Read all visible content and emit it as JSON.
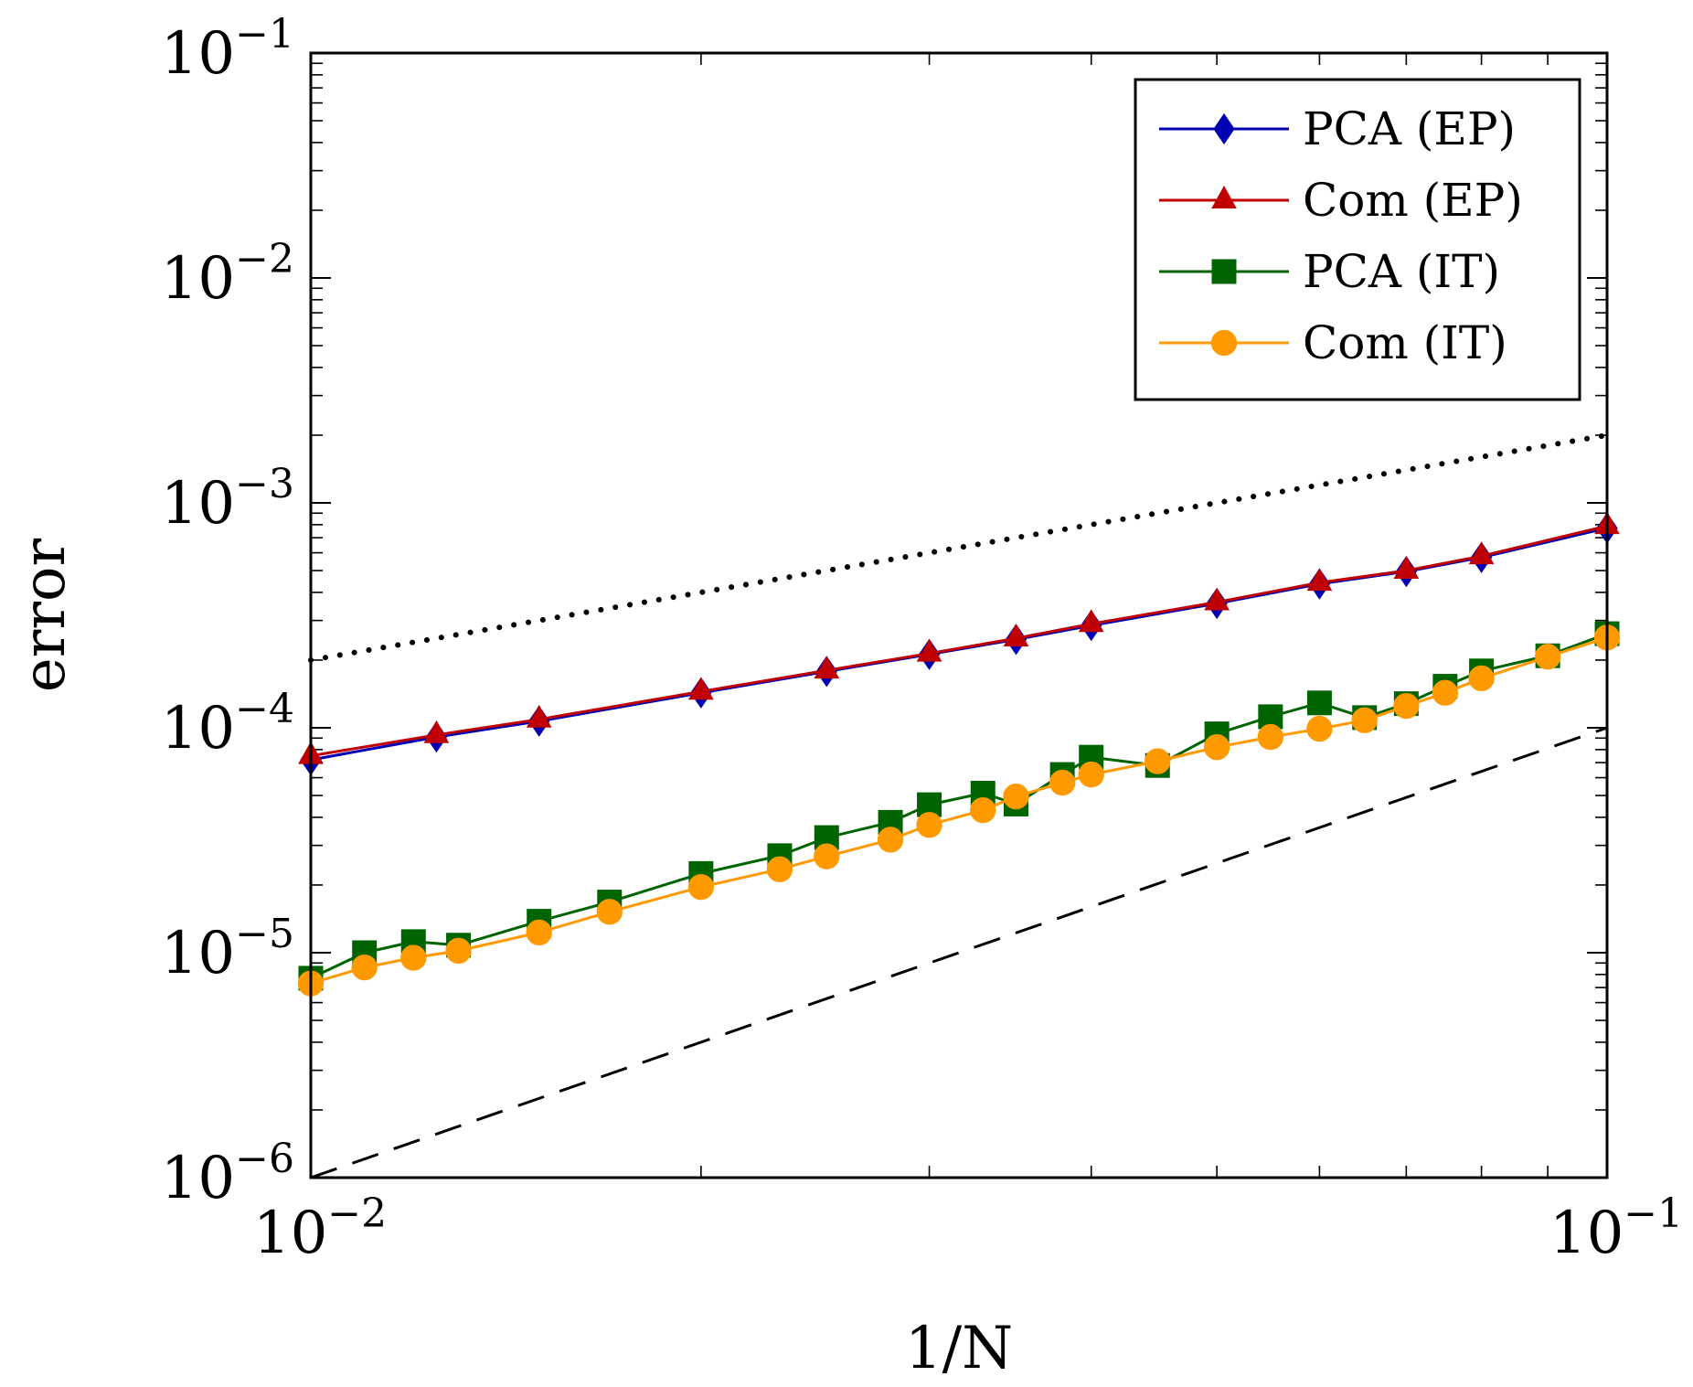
{
  "chart_data": {
    "type": "line",
    "title": "",
    "xlabel": "1/N",
    "ylabel": "error",
    "xscale": "log",
    "yscale": "log",
    "xlim": [
      0.01,
      0.1
    ],
    "ylim": [
      1e-06,
      0.1
    ],
    "x_ticks": [
      {
        "base": "10",
        "exp": "−2"
      },
      {
        "base": "10",
        "exp": "−1"
      }
    ],
    "y_ticks": [
      {
        "base": "10",
        "exp": "−6"
      },
      {
        "base": "10",
        "exp": "−5"
      },
      {
        "base": "10",
        "exp": "−4"
      },
      {
        "base": "10",
        "exp": "−3"
      },
      {
        "base": "10",
        "exp": "−2"
      },
      {
        "base": "10",
        "exp": "−1"
      }
    ],
    "legend_position": "top-right",
    "series": [
      {
        "name": "PCA (EP)",
        "color": "#0000b3",
        "marker": "diamond",
        "x": [
          0.01,
          0.0125,
          0.015,
          0.02,
          0.025,
          0.03,
          0.035,
          0.04,
          0.05,
          0.06,
          0.07,
          0.08,
          0.1
        ],
        "y": [
          7.2e-05,
          9.1e-05,
          0.000107,
          0.000143,
          0.000178,
          0.000212,
          0.000247,
          0.000285,
          0.000357,
          0.000436,
          0.000495,
          0.000572,
          0.000772
        ]
      },
      {
        "name": "Com (EP)",
        "color": "#c00000",
        "marker": "triangle",
        "x": [
          0.01,
          0.0125,
          0.015,
          0.02,
          0.025,
          0.03,
          0.035,
          0.04,
          0.05,
          0.06,
          0.07,
          0.08,
          0.1
        ],
        "y": [
          7.5e-05,
          9.3e-05,
          0.000109,
          0.000145,
          0.00018,
          0.000214,
          0.00025,
          0.00029,
          0.000362,
          0.000442,
          0.0005,
          0.00058,
          0.00079
        ]
      },
      {
        "name": "PCA (IT)",
        "color": "#006400",
        "marker": "square",
        "x": [
          0.01,
          0.011,
          0.012,
          0.013,
          0.015,
          0.017,
          0.02,
          0.023,
          0.025,
          0.028,
          0.03,
          0.033,
          0.035,
          0.038,
          0.04,
          0.045,
          0.05,
          0.055,
          0.06,
          0.065,
          0.07,
          0.075,
          0.08,
          0.09,
          0.1
        ],
        "y": [
          7.7e-06,
          1e-05,
          1.12e-05,
          1.08e-05,
          1.38e-05,
          1.68e-05,
          2.25e-05,
          2.7e-05,
          3.25e-05,
          3.8e-05,
          4.55e-05,
          5.12e-05,
          4.58e-05,
          6.2e-05,
          7.4e-05,
          6.8e-05,
          9.4e-05,
          0.000112,
          0.000129,
          0.000111,
          0.000128,
          0.000153,
          0.000179,
          0.000209,
          0.000262
        ]
      },
      {
        "name": "Com (IT)",
        "color": "#ff9900",
        "marker": "circle",
        "x": [
          0.01,
          0.011,
          0.012,
          0.013,
          0.015,
          0.017,
          0.02,
          0.023,
          0.025,
          0.028,
          0.03,
          0.033,
          0.035,
          0.038,
          0.04,
          0.045,
          0.05,
          0.055,
          0.06,
          0.065,
          0.07,
          0.075,
          0.08,
          0.09,
          0.1
        ],
        "y": [
          7.3e-06,
          8.6e-06,
          9.5e-06,
          1.02e-05,
          1.23e-05,
          1.52e-05,
          1.96e-05,
          2.35e-05,
          2.68e-05,
          3.18e-05,
          3.7e-05,
          4.3e-05,
          4.95e-05,
          5.7e-05,
          6.2e-05,
          7.1e-05,
          8.2e-05,
          9.1e-05,
          9.9e-05,
          0.000108,
          0.000125,
          0.000143,
          0.000166,
          0.000207,
          0.000252
        ]
      }
    ],
    "reference_lines": [
      {
        "name": "dotted reference",
        "style": "dotted",
        "color": "#000000",
        "x": [
          0.01,
          0.1
        ],
        "y": [
          0.0002,
          0.002
        ]
      },
      {
        "name": "dashed reference",
        "style": "dashed",
        "color": "#000000",
        "x": [
          0.01,
          0.1
        ],
        "y": [
          1e-06,
          0.0001
        ]
      }
    ]
  }
}
